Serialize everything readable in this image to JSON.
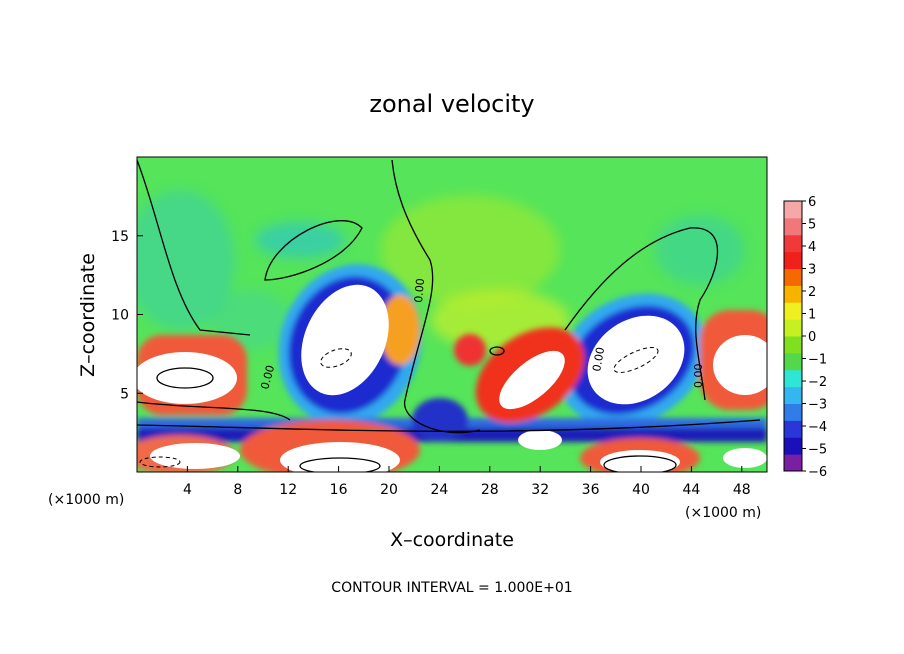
{
  "chart_data": {
    "type": "heatmap",
    "title": "zonal velocity",
    "xlabel": "X–coordinate",
    "ylabel": "Z–coordinate",
    "x_unit_left": "(×1000 m)",
    "x_unit_right": "(×1000 m)",
    "xlim": [
      0,
      50
    ],
    "ylim": [
      0,
      20
    ],
    "x_ticks": [
      4,
      8,
      12,
      16,
      20,
      24,
      28,
      32,
      36,
      40,
      44,
      48
    ],
    "y_ticks": [
      5,
      10,
      15
    ],
    "contour_note": "CONTOUR INTERVAL = 1.000E+01",
    "contour_labels": [
      "0.00",
      "0.00",
      "0.00",
      "0.00"
    ],
    "colorbar": {
      "ticks": [
        "6",
        "5",
        "4",
        "3",
        "2",
        "1",
        "0",
        "−1",
        "−2",
        "−3",
        "−4",
        "−5",
        "−6"
      ],
      "colors": [
        "#7a1fa2",
        "#1a0fb8",
        "#2a36d8",
        "#2f7de6",
        "#35b6f0",
        "#2fe6d6",
        "#52d84a",
        "#7fe020",
        "#c6f020",
        "#f0f020",
        "#f6b400",
        "#f46a00",
        "#f0201a",
        "#f03a3a",
        "#f07878",
        "#f4a8a8"
      ]
    },
    "regions_description_colors": {
      "background": "#55e45a",
      "saturated_positive": "#ffffff"
    }
  }
}
